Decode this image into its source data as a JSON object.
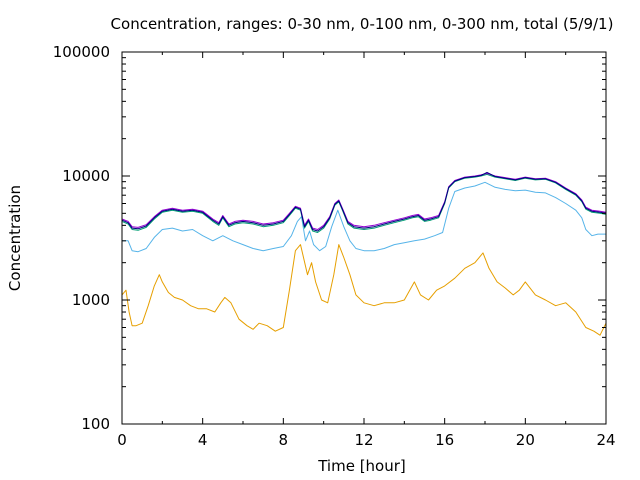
{
  "chart_data": {
    "type": "line",
    "title": "Concentration, ranges: 0-30 nm, 0-100 nm, 0-300 nm, total (5/9/1)",
    "xlabel": "Time [hour]",
    "ylabel": "Concentration",
    "xlim": [
      0,
      24
    ],
    "ylim": [
      100,
      100000
    ],
    "yscale": "log",
    "grid": false,
    "legend": "none",
    "x_ticks": [
      0,
      4,
      8,
      12,
      16,
      20,
      24
    ],
    "x_tick_labels": [
      "0",
      "4",
      "8",
      "12",
      "16",
      "20",
      "24"
    ],
    "y_ticks": [
      100,
      1000,
      10000,
      100000
    ],
    "y_tick_labels": [
      "100",
      "1000",
      "10000",
      "100000"
    ],
    "series": [
      {
        "color": "#e69f00",
        "x": [
          0,
          0.2,
          0.35,
          0.5,
          0.7,
          1.0,
          1.3,
          1.6,
          1.85,
          2.0,
          2.3,
          2.6,
          3.0,
          3.4,
          3.8,
          4.2,
          4.6,
          4.9,
          5.1,
          5.4,
          5.8,
          6.2,
          6.5,
          6.8,
          7.2,
          7.6,
          8.0,
          8.3,
          8.6,
          8.85,
          9.0,
          9.2,
          9.4,
          9.6,
          9.9,
          10.2,
          10.5,
          10.75,
          11.0,
          11.3,
          11.6,
          12.0,
          12.5,
          13.0,
          13.5,
          14.0,
          14.5,
          14.8,
          15.2,
          15.6,
          16.0,
          16.5,
          17.0,
          17.5,
          17.9,
          18.2,
          18.6,
          19.0,
          19.4,
          19.7,
          20.0,
          20.5,
          21.0,
          21.5,
          22.0,
          22.5,
          23.0,
          23.4,
          23.7,
          24
        ],
        "y": [
          1100,
          1200,
          800,
          620,
          620,
          650,
          900,
          1300,
          1600,
          1400,
          1150,
          1050,
          1000,
          900,
          850,
          850,
          800,
          950,
          1050,
          950,
          700,
          620,
          580,
          650,
          620,
          560,
          600,
          1200,
          2500,
          2800,
          2200,
          1600,
          2000,
          1400,
          1000,
          950,
          1600,
          2800,
          2200,
          1600,
          1100,
          950,
          900,
          950,
          950,
          1000,
          1400,
          1100,
          1000,
          1200,
          1300,
          1500,
          1800,
          2000,
          2400,
          1800,
          1400,
          1250,
          1100,
          1200,
          1400,
          1100,
          1000,
          900,
          950,
          800,
          600,
          560,
          520,
          650
        ]
      },
      {
        "color": "#56b4e9",
        "x": [
          0,
          0.3,
          0.5,
          0.8,
          1.2,
          1.6,
          2.0,
          2.5,
          3.0,
          3.5,
          4.0,
          4.5,
          5.0,
          5.5,
          6.0,
          6.5,
          7.0,
          7.5,
          8.0,
          8.4,
          8.7,
          8.9,
          9.1,
          9.3,
          9.5,
          9.8,
          10.1,
          10.4,
          10.7,
          11.0,
          11.3,
          11.6,
          12.0,
          12.5,
          13.0,
          13.5,
          14.0,
          14.5,
          15.0,
          15.5,
          15.9,
          16.2,
          16.5,
          17.0,
          17.5,
          18.0,
          18.5,
          19.0,
          19.5,
          20.0,
          20.5,
          21.0,
          21.5,
          22.0,
          22.5,
          22.8,
          23.0,
          23.3,
          23.6,
          24
        ],
        "y": [
          3000,
          3000,
          2500,
          2450,
          2600,
          3200,
          3700,
          3800,
          3600,
          3700,
          3300,
          3000,
          3300,
          3000,
          2800,
          2600,
          2500,
          2600,
          2700,
          3300,
          4300,
          4700,
          3000,
          3600,
          2800,
          2500,
          2700,
          3900,
          5300,
          3900,
          3000,
          2600,
          2500,
          2500,
          2600,
          2800,
          2900,
          3000,
          3100,
          3300,
          3500,
          5500,
          7500,
          8000,
          8300,
          8900,
          8100,
          7800,
          7600,
          7700,
          7400,
          7300,
          6700,
          6000,
          5300,
          4600,
          3700,
          3300,
          3400,
          3400
        ]
      },
      {
        "color": "#009e73",
        "x": [
          0,
          0.3,
          0.5,
          0.8,
          1.2,
          1.6,
          2.0,
          2.5,
          3.0,
          3.5,
          4.0,
          4.5,
          4.8,
          5.0,
          5.3,
          5.6,
          6.0,
          6.5,
          7.0,
          7.5,
          8.0,
          8.3,
          8.6,
          8.85,
          9.05,
          9.25,
          9.45,
          9.7,
          10.0,
          10.3,
          10.55,
          10.75,
          10.95,
          11.2,
          11.5,
          12.0,
          12.5,
          13.0,
          13.5,
          14.0,
          14.4,
          14.7,
          15.0,
          15.3,
          15.7,
          16.0,
          16.2,
          16.5,
          17.0,
          17.5,
          17.8,
          18.1,
          18.5,
          19.0,
          19.5,
          20.0,
          20.5,
          21.0,
          21.5,
          22.0,
          22.5,
          22.8,
          23.0,
          23.3,
          23.7,
          24
        ],
        "y": [
          4300,
          4100,
          3700,
          3650,
          3850,
          4500,
          5100,
          5300,
          5100,
          5200,
          5000,
          4300,
          4000,
          4600,
          3900,
          4100,
          4200,
          4100,
          3900,
          4000,
          4200,
          4800,
          5500,
          5300,
          3800,
          4300,
          3600,
          3500,
          3800,
          4500,
          5800,
          6200,
          5200,
          4100,
          3800,
          3700,
          3800,
          4000,
          4200,
          4400,
          4600,
          4700,
          4300,
          4400,
          4600,
          6000,
          8000,
          9000,
          9600,
          9800,
          10000,
          10300,
          9800,
          9500,
          9200,
          9600,
          9300,
          9400,
          8800,
          7800,
          7000,
          6200,
          5400,
          5100,
          5000,
          4900
        ]
      },
      {
        "color": "#9400d3",
        "x": [
          0,
          0.3,
          0.5,
          0.8,
          1.2,
          1.6,
          2.0,
          2.5,
          3.0,
          3.5,
          4.0,
          4.5,
          4.8,
          5.0,
          5.3,
          5.6,
          6.0,
          6.5,
          7.0,
          7.5,
          8.0,
          8.3,
          8.6,
          8.85,
          9.05,
          9.25,
          9.45,
          9.7,
          10.0,
          10.3,
          10.55,
          10.75,
          10.95,
          11.2,
          11.5,
          12.0,
          12.5,
          13.0,
          13.5,
          14.0,
          14.4,
          14.7,
          15.0,
          15.3,
          15.7,
          16.0,
          16.2,
          16.5,
          17.0,
          17.5,
          17.8,
          18.1,
          18.5,
          19.0,
          19.5,
          20.0,
          20.5,
          21.0,
          21.5,
          22.0,
          22.5,
          22.8,
          23.0,
          23.3,
          23.7,
          24
        ],
        "y": [
          4500,
          4300,
          3900,
          3850,
          4050,
          4700,
          5300,
          5500,
          5300,
          5400,
          5200,
          4500,
          4200,
          4800,
          4100,
          4300,
          4400,
          4300,
          4100,
          4200,
          4400,
          5000,
          5700,
          5500,
          4000,
          4500,
          3800,
          3700,
          4000,
          4700,
          6000,
          6400,
          5400,
          4300,
          4000,
          3900,
          4000,
          4200,
          4400,
          4600,
          4800,
          4900,
          4500,
          4600,
          4800,
          6200,
          8200,
          9200,
          9800,
          10000,
          10200,
          10500,
          10000,
          9700,
          9400,
          9800,
          9500,
          9600,
          9000,
          8000,
          7200,
          6400,
          5600,
          5300,
          5200,
          5100
        ]
      },
      {
        "color": "#000080",
        "x": [
          0,
          0.3,
          0.5,
          0.8,
          1.2,
          1.6,
          2.0,
          2.5,
          3.0,
          3.5,
          4.0,
          4.5,
          4.8,
          5.0,
          5.3,
          5.6,
          6.0,
          6.5,
          7.0,
          7.5,
          8.0,
          8.3,
          8.6,
          8.85,
          9.05,
          9.25,
          9.45,
          9.7,
          10.0,
          10.3,
          10.55,
          10.75,
          10.95,
          11.2,
          11.5,
          12.0,
          12.5,
          13.0,
          13.5,
          14.0,
          14.4,
          14.7,
          15.0,
          15.3,
          15.7,
          16.0,
          16.2,
          16.5,
          17.0,
          17.5,
          17.8,
          18.1,
          18.5,
          19.0,
          19.5,
          20.0,
          20.5,
          21.0,
          21.5,
          22.0,
          22.5,
          22.8,
          23.0,
          23.3,
          23.7,
          24
        ],
        "y": [
          4400,
          4200,
          3800,
          3750,
          3950,
          4600,
          5200,
          5400,
          5200,
          5300,
          5100,
          4400,
          4100,
          4700,
          4000,
          4200,
          4300,
          4200,
          4000,
          4100,
          4300,
          4900,
          5600,
          5400,
          3900,
          4400,
          3700,
          3600,
          3900,
          4600,
          5900,
          6300,
          5300,
          4200,
          3900,
          3800,
          3900,
          4100,
          4300,
          4500,
          4700,
          4800,
          4400,
          4500,
          4700,
          6100,
          8100,
          9100,
          9700,
          9900,
          10100,
          10700,
          9900,
          9600,
          9300,
          9700,
          9400,
          9500,
          8900,
          7900,
          7100,
          6300,
          5500,
          5200,
          5100,
          5000
        ]
      }
    ]
  }
}
